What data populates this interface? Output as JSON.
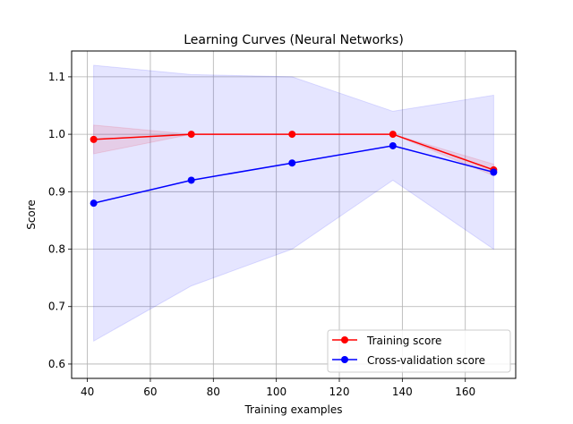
{
  "chart_data": {
    "type": "line",
    "title": "Learning Curves (Neural Networks)",
    "xlabel": "Training examples",
    "ylabel": "Score",
    "xlim": [
      35,
      176
    ],
    "ylim": [
      0.575,
      1.145
    ],
    "xticks": [
      40,
      60,
      80,
      100,
      120,
      140,
      160
    ],
    "yticks": [
      0.6,
      0.7,
      0.8,
      0.9,
      1.0,
      1.1
    ],
    "grid": true,
    "legend_position": "bottom-right",
    "x": [
      42,
      73,
      105,
      137,
      169
    ],
    "series": [
      {
        "name": "Training score",
        "color": "#ff0000",
        "values": [
          0.991,
          1.0,
          1.0,
          1.0,
          0.938
        ],
        "band_lower": [
          0.966,
          1.0,
          1.0,
          1.0,
          0.928
        ],
        "band_upper": [
          1.016,
          1.0,
          1.0,
          1.0,
          0.948
        ]
      },
      {
        "name": "Cross-validation score",
        "color": "#0000ff",
        "values": [
          0.88,
          0.92,
          0.95,
          0.98,
          0.934
        ],
        "band_lower": [
          0.64,
          0.736,
          0.8,
          0.92,
          0.8
        ],
        "band_upper": [
          1.12,
          1.104,
          1.1,
          1.04,
          1.068
        ]
      }
    ]
  }
}
